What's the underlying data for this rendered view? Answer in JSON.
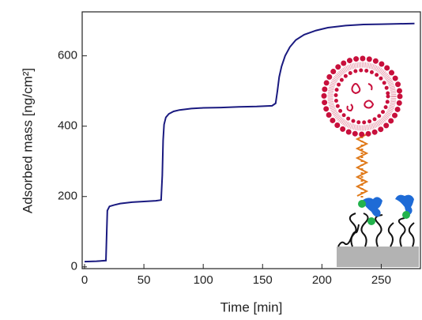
{
  "chart_data": {
    "type": "line",
    "x_label": "Time [min]",
    "y_label": "Adsorbed mass [ng/cm²]",
    "xlim": [
      -2,
      283
    ],
    "xticks": [
      0,
      50,
      100,
      150,
      200,
      250
    ],
    "ylim": [
      -5,
      725
    ],
    "yticks": [
      0,
      200,
      400,
      600
    ],
    "grid": false,
    "series": [
      {
        "color": "#1a1a80",
        "x": [
          0,
          10,
          18,
          18.6,
          19.2,
          21,
          25,
          30,
          40,
          50,
          60,
          64.5,
          65.5,
          66.2,
          67,
          68.5,
          71,
          75,
          80,
          90,
          100,
          115,
          130,
          145,
          158,
          161,
          162.5,
          164,
          166,
          169,
          173,
          178,
          185,
          195,
          205,
          220,
          235,
          250,
          265,
          278
        ],
        "values": [
          15,
          16,
          18,
          90,
          160,
          172,
          176,
          180,
          184,
          186,
          188,
          190,
          260,
          360,
          405,
          425,
          435,
          442,
          446,
          450,
          452,
          453,
          455,
          456,
          458,
          465,
          500,
          540,
          570,
          600,
          625,
          645,
          660,
          672,
          680,
          686,
          689,
          690,
          691,
          692
        ]
      }
    ]
  }
}
